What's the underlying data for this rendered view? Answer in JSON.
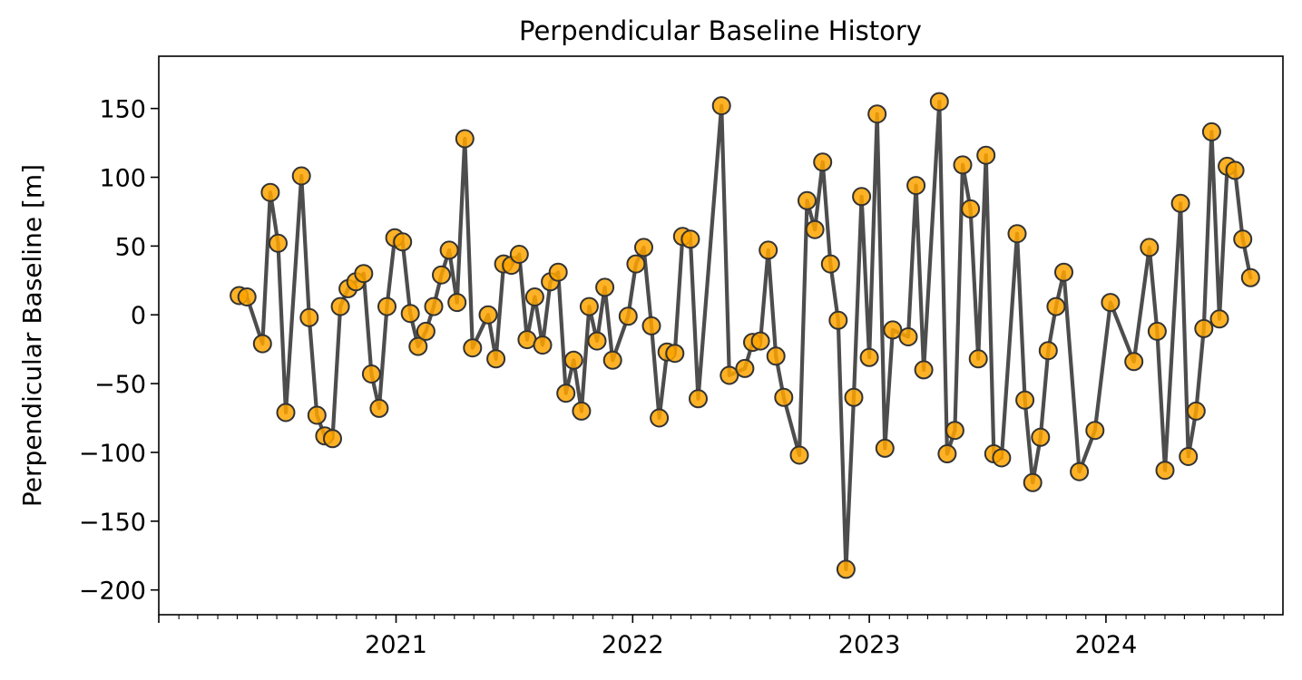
{
  "chart_data": {
    "type": "line",
    "title": "Perpendicular Baseline History",
    "xlabel": "",
    "ylabel": "Perpendicular Baseline [m]",
    "ylim": [
      -218,
      188
    ],
    "xlim": [
      "2020-01-01",
      "2024-09-30"
    ],
    "y_ticks": [
      150,
      100,
      50,
      0,
      -50,
      -100,
      -150,
      -200
    ],
    "y_tick_labels": [
      "150",
      "100",
      "50",
      "0",
      "−50",
      "−100",
      "−150",
      "−200"
    ],
    "x_tick_labels": [
      "2021",
      "2022",
      "2023",
      "2024"
    ],
    "x_tick_dates": [
      "2021-01-01",
      "2022-01-01",
      "2023-01-01",
      "2024-01-01"
    ],
    "grid": false,
    "colors": {
      "line": "#4d4d4d",
      "marker_fill": "#ffa500",
      "marker_edge": "#333333"
    },
    "points": [
      [
        "2020-05-04",
        14
      ],
      [
        "2020-05-16",
        13
      ],
      [
        "2020-06-09",
        -21
      ],
      [
        "2020-06-21",
        89
      ],
      [
        "2020-07-03",
        52
      ],
      [
        "2020-07-15",
        -71
      ],
      [
        "2020-08-08",
        101
      ],
      [
        "2020-08-20",
        -2
      ],
      [
        "2020-09-01",
        -73
      ],
      [
        "2020-09-13",
        -88
      ],
      [
        "2020-09-25",
        -90
      ],
      [
        "2020-10-07",
        6
      ],
      [
        "2020-10-19",
        19
      ],
      [
        "2020-10-31",
        24
      ],
      [
        "2020-11-12",
        30
      ],
      [
        "2020-11-24",
        -43
      ],
      [
        "2020-12-06",
        -68
      ],
      [
        "2020-12-18",
        6
      ],
      [
        "2020-12-30",
        56
      ],
      [
        "2021-01-11",
        53
      ],
      [
        "2021-01-23",
        1
      ],
      [
        "2021-02-04",
        -23
      ],
      [
        "2021-02-16",
        -12
      ],
      [
        "2021-02-28",
        6
      ],
      [
        "2021-03-12",
        29
      ],
      [
        "2021-03-24",
        47
      ],
      [
        "2021-04-05",
        9
      ],
      [
        "2021-04-17",
        128
      ],
      [
        "2021-04-29",
        -24
      ],
      [
        "2021-05-23",
        0
      ],
      [
        "2021-06-04",
        -32
      ],
      [
        "2021-06-16",
        37
      ],
      [
        "2021-06-28",
        36
      ],
      [
        "2021-07-10",
        44
      ],
      [
        "2021-07-22",
        -18
      ],
      [
        "2021-08-03",
        13
      ],
      [
        "2021-08-15",
        -22
      ],
      [
        "2021-08-27",
        24
      ],
      [
        "2021-09-08",
        31
      ],
      [
        "2021-09-20",
        -57
      ],
      [
        "2021-10-02",
        -33
      ],
      [
        "2021-10-14",
        -70
      ],
      [
        "2021-10-26",
        6
      ],
      [
        "2021-11-07",
        -19
      ],
      [
        "2021-11-19",
        20
      ],
      [
        "2021-12-01",
        -33
      ],
      [
        "2021-12-25",
        -1
      ],
      [
        "2022-01-06",
        37
      ],
      [
        "2022-01-18",
        49
      ],
      [
        "2022-01-30",
        -8
      ],
      [
        "2022-02-11",
        -75
      ],
      [
        "2022-02-23",
        -27
      ],
      [
        "2022-03-07",
        -28
      ],
      [
        "2022-03-19",
        57
      ],
      [
        "2022-03-31",
        55
      ],
      [
        "2022-04-12",
        -61
      ],
      [
        "2022-05-18",
        152
      ],
      [
        "2022-05-30",
        -44
      ],
      [
        "2022-06-23",
        -39
      ],
      [
        "2022-07-05",
        -20
      ],
      [
        "2022-07-17",
        -19
      ],
      [
        "2022-07-29",
        47
      ],
      [
        "2022-08-10",
        -30
      ],
      [
        "2022-08-22",
        -60
      ],
      [
        "2022-09-15",
        -102
      ],
      [
        "2022-09-27",
        83
      ],
      [
        "2022-10-09",
        62
      ],
      [
        "2022-10-21",
        111
      ],
      [
        "2022-11-02",
        37
      ],
      [
        "2022-11-14",
        -4
      ],
      [
        "2022-11-26",
        -185
      ],
      [
        "2022-12-08",
        -60
      ],
      [
        "2022-12-20",
        86
      ],
      [
        "2023-01-01",
        -31
      ],
      [
        "2023-01-13",
        146
      ],
      [
        "2023-01-25",
        -97
      ],
      [
        "2023-02-06",
        -11
      ],
      [
        "2023-03-02",
        -16
      ],
      [
        "2023-03-14",
        94
      ],
      [
        "2023-03-26",
        -40
      ],
      [
        "2023-04-19",
        155
      ],
      [
        "2023-05-01",
        -101
      ],
      [
        "2023-05-13",
        -84
      ],
      [
        "2023-05-25",
        109
      ],
      [
        "2023-06-06",
        77
      ],
      [
        "2023-06-18",
        -32
      ],
      [
        "2023-06-30",
        116
      ],
      [
        "2023-07-12",
        -101
      ],
      [
        "2023-07-24",
        -104
      ],
      [
        "2023-08-17",
        59
      ],
      [
        "2023-08-29",
        -62
      ],
      [
        "2023-09-10",
        -122
      ],
      [
        "2023-09-22",
        -89
      ],
      [
        "2023-10-04",
        -26
      ],
      [
        "2023-10-16",
        6
      ],
      [
        "2023-10-28",
        31
      ],
      [
        "2023-11-21",
        -114
      ],
      [
        "2023-12-15",
        -84
      ],
      [
        "2024-01-08",
        9
      ],
      [
        "2024-02-13",
        -34
      ],
      [
        "2024-03-08",
        49
      ],
      [
        "2024-03-20",
        -12
      ],
      [
        "2024-04-01",
        -113
      ],
      [
        "2024-04-25",
        81
      ],
      [
        "2024-05-07",
        -103
      ],
      [
        "2024-05-19",
        -70
      ],
      [
        "2024-05-31",
        -10
      ],
      [
        "2024-06-12",
        133
      ],
      [
        "2024-06-24",
        -3
      ],
      [
        "2024-07-06",
        108
      ],
      [
        "2024-07-18",
        105
      ],
      [
        "2024-07-30",
        55
      ],
      [
        "2024-08-11",
        27
      ]
    ]
  }
}
